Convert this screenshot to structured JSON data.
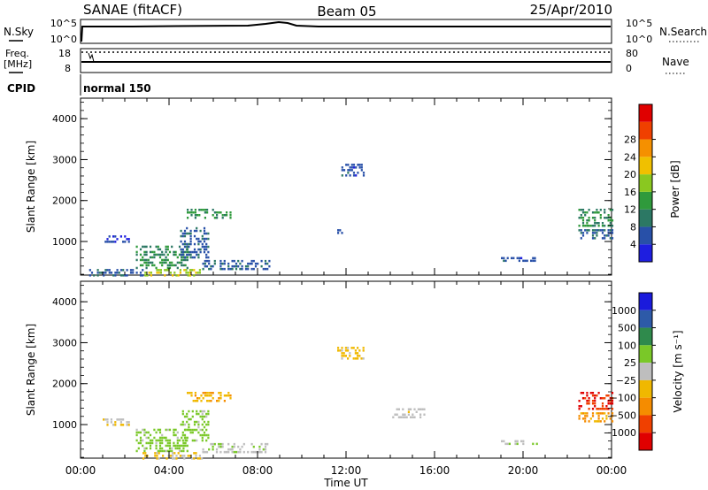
{
  "header": {
    "station": "SANAE (fitACF)",
    "beam": "Beam 05",
    "date": "25/Apr/2010"
  },
  "top_panels": {
    "nsky_label": "N.Sky",
    "nsky_ticks": [
      "10^5",
      "10^0"
    ],
    "nsearch_label": "N.Search",
    "nsearch_ticks": [
      "10^5",
      "10^0"
    ],
    "freq_label_1": "Freq.",
    "freq_label_2": "[MHz]",
    "freq_ticks": [
      "18",
      "8"
    ],
    "nave_label": "Nave",
    "nave_ticks": [
      "80",
      "0"
    ],
    "cpid_label": "CPID",
    "cpid_value": "normal 150"
  },
  "chart_data": [
    {
      "type": "heatmap",
      "title": "",
      "xlabel": "",
      "ylabel": "Slant Range [km]",
      "xlim": [
        0,
        24
      ],
      "ylim": [
        180,
        4500
      ],
      "yticks": [
        "1000",
        "2000",
        "3000",
        "4000"
      ],
      "colorbar_label": "Power [dB]",
      "colorbar_ticks": [
        "4",
        "8",
        "12",
        "16",
        "20",
        "24",
        "28"
      ],
      "colorbar_range": [
        0,
        30
      ],
      "colors": [
        "#1e1ee0",
        "#2850a8",
        "#2c7864",
        "#2f9a3c",
        "#8ac820",
        "#f0c000",
        "#f59000",
        "#f04000",
        "#e00000"
      ],
      "regions": [
        {
          "x": [
            0.3,
            2.8
          ],
          "y": [
            200,
            330
          ],
          "value": 6
        },
        {
          "x": [
            2.8,
            5.5
          ],
          "y": [
            200,
            330
          ],
          "value": 16
        },
        {
          "x": [
            2.5,
            4.8
          ],
          "y": [
            330,
            900
          ],
          "value": 10
        },
        {
          "x": [
            4.5,
            5.8
          ],
          "y": [
            600,
            1350
          ],
          "value": 6
        },
        {
          "x": [
            4.8,
            6.8
          ],
          "y": [
            1600,
            1800
          ],
          "value": 10
        },
        {
          "x": [
            1.0,
            2.2
          ],
          "y": [
            1000,
            1150
          ],
          "value": 4
        },
        {
          "x": [
            5.5,
            8.5
          ],
          "y": [
            300,
            550
          ],
          "value": 6
        },
        {
          "x": [
            19.0,
            20.6
          ],
          "y": [
            520,
            620
          ],
          "value": 5
        },
        {
          "x": [
            22.5,
            24.0
          ],
          "y": [
            1400,
            1800
          ],
          "value": 10
        },
        {
          "x": [
            22.5,
            24.0
          ],
          "y": [
            1050,
            1300
          ],
          "value": 6
        },
        {
          "x": [
            11.7,
            12.8
          ],
          "y": [
            2600,
            2900
          ],
          "value": 5
        },
        {
          "x": [
            11.6,
            11.8
          ],
          "y": [
            1150,
            1300
          ],
          "value": 4
        }
      ]
    },
    {
      "type": "heatmap",
      "title": "",
      "xlabel": "Time UT",
      "ylabel": "Slant Range [km]",
      "xlim": [
        0,
        24
      ],
      "ylim": [
        180,
        4500
      ],
      "xticks": [
        "00:00",
        "04:00",
        "08:00",
        "12:00",
        "16:00",
        "20:00",
        "00:00"
      ],
      "yticks": [
        "1000",
        "2000",
        "3000",
        "4000"
      ],
      "colorbar_label": "Velocity [m s⁻¹]",
      "colorbar_ticks": [
        "1000",
        "500",
        "100",
        "25",
        "−25",
        "−100",
        "−500",
        "−1000"
      ],
      "colorbar_range": [
        -1000,
        1000
      ],
      "colors": [
        "#1a1adc",
        "#2d5aa8",
        "#2f8a4c",
        "#7ac828",
        "#bebebe",
        "#f0b800",
        "#f58c00",
        "#f04000",
        "#e00000"
      ],
      "regions": [
        {
          "x": [
            2.5,
            4.8
          ],
          "y": [
            330,
            900
          ],
          "value": 200
        },
        {
          "x": [
            2.8,
            5.5
          ],
          "y": [
            200,
            330
          ],
          "value": -150
        },
        {
          "x": [
            4.5,
            5.8
          ],
          "y": [
            600,
            1350
          ],
          "value": 200
        },
        {
          "x": [
            4.8,
            6.8
          ],
          "y": [
            1600,
            1800
          ],
          "value": -300
        },
        {
          "x": [
            1.0,
            2.2
          ],
          "y": [
            1000,
            1150
          ],
          "value": -100
        },
        {
          "x": [
            5.5,
            8.5
          ],
          "y": [
            300,
            550
          ],
          "value": 30
        },
        {
          "x": [
            22.5,
            24.0
          ],
          "y": [
            1400,
            1800
          ],
          "value": -800
        },
        {
          "x": [
            22.5,
            24.0
          ],
          "y": [
            1050,
            1300
          ],
          "value": -400
        },
        {
          "x": [
            11.6,
            12.8
          ],
          "y": [
            2600,
            2900
          ],
          "value": -200
        },
        {
          "x": [
            14.0,
            15.5
          ],
          "y": [
            1200,
            1400
          ],
          "value": 0
        },
        {
          "x": [
            19.0,
            20.6
          ],
          "y": [
            520,
            620
          ],
          "value": 80
        }
      ]
    }
  ]
}
